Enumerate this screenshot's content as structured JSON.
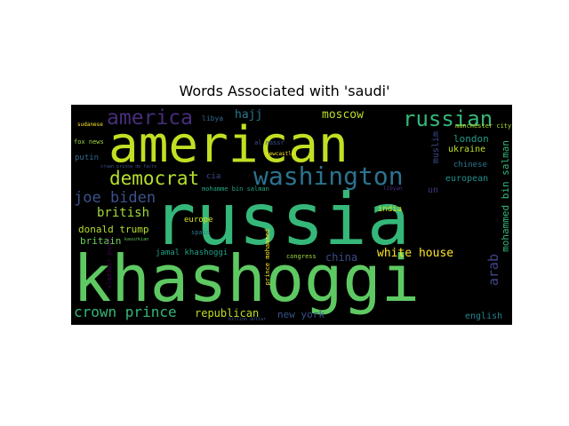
{
  "chart_data": {
    "type": "wordcloud",
    "title": "Words Associated with 'saudi'",
    "words": [
      {
        "text": "russia",
        "color": "#35b779"
      },
      {
        "text": "khashoggi",
        "color": "#5ec962"
      },
      {
        "text": "american",
        "color": "#c2df23"
      },
      {
        "text": "washington",
        "color": "#2c728e"
      },
      {
        "text": "russian",
        "color": "#35b779"
      },
      {
        "text": "america",
        "color": "#472d7b"
      },
      {
        "text": "democrat",
        "color": "#b5de2b"
      },
      {
        "text": "joe biden",
        "color": "#3b528b"
      },
      {
        "text": "crown prince",
        "color": "#35b779"
      },
      {
        "text": "british",
        "color": "#a0da39"
      },
      {
        "text": "white house",
        "color": "#fde725"
      },
      {
        "text": "moscow",
        "color": "#bddf26"
      },
      {
        "text": "hajj",
        "color": "#2a788e"
      },
      {
        "text": "arab",
        "color": "#404688"
      },
      {
        "text": "mohammed bin salman",
        "color": "#35b779"
      },
      {
        "text": "republican",
        "color": "#bddf26"
      },
      {
        "text": "donald trump",
        "color": "#b5de2b"
      },
      {
        "text": "britain",
        "color": "#6ece58"
      },
      {
        "text": "london",
        "color": "#1f9e89"
      },
      {
        "text": "ukraine",
        "color": "#bddf26"
      },
      {
        "text": "muslim",
        "color": "#3e4989"
      },
      {
        "text": "european",
        "color": "#21918c"
      },
      {
        "text": "chinese",
        "color": "#2a788e"
      },
      {
        "text": "china",
        "color": "#3e4989"
      },
      {
        "text": "new york",
        "color": "#3b528b"
      },
      {
        "text": "english",
        "color": "#25858e"
      },
      {
        "text": "india",
        "color": "#dfe318"
      },
      {
        "text": "europe",
        "color": "#dfe318"
      },
      {
        "text": "jamal khashoggi",
        "color": "#1fa187"
      },
      {
        "text": "un",
        "color": "#46327e"
      },
      {
        "text": "cia",
        "color": "#3e4989"
      },
      {
        "text": "putin",
        "color": "#31688e"
      },
      {
        "text": "libya",
        "color": "#31688e"
      },
      {
        "text": "fox news",
        "color": "#9fda3a"
      },
      {
        "text": "spain",
        "color": "#2a788e"
      },
      {
        "text": "congress",
        "color": "#a0da39"
      },
      {
        "text": "prince mohammed",
        "color": "#fde725"
      },
      {
        "text": "vladimir putin",
        "color": "#440154"
      },
      {
        "text": "sudanese",
        "color": "#fde725"
      },
      {
        "text": "manchester city",
        "color": "#b5de2b"
      },
      {
        "text": "crown prince de facto",
        "color": "#3b528b"
      },
      {
        "text": "mohamme bin salman",
        "color": "#22a884"
      },
      {
        "text": "al nassr",
        "color": "#3b528b"
      },
      {
        "text": "newcastle",
        "color": "#fde725"
      },
      {
        "text": "libyan",
        "color": "#46327e"
      },
      {
        "text": "kavurkian",
        "color": "#5ec962"
      },
      {
        "text": "billion dollar",
        "color": "#3b528b"
      }
    ]
  }
}
